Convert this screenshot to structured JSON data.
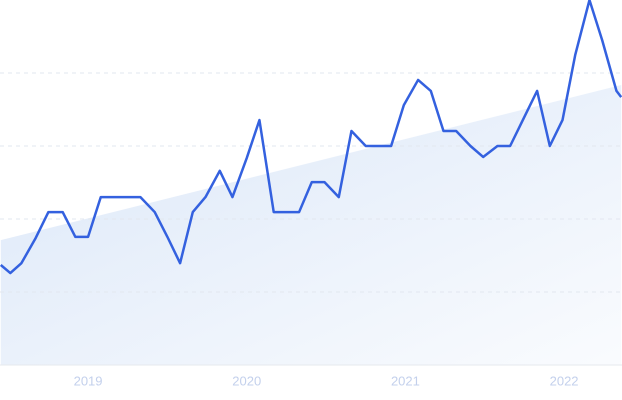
{
  "chart_data": {
    "type": "line",
    "x": [
      2018.45,
      2018.51,
      2018.58,
      2018.67,
      2018.75,
      2018.84,
      2018.92,
      2019.0,
      2019.08,
      2019.16,
      2019.25,
      2019.33,
      2019.42,
      2019.5,
      2019.58,
      2019.66,
      2019.74,
      2019.83,
      2019.91,
      2020.0,
      2020.08,
      2020.17,
      2020.25,
      2020.33,
      2020.41,
      2020.49,
      2020.58,
      2020.66,
      2020.75,
      2020.83,
      2020.91,
      2020.99,
      2021.08,
      2021.16,
      2021.24,
      2021.32,
      2021.41,
      2021.49,
      2021.58,
      2021.66,
      2021.74,
      2021.83,
      2021.91,
      2021.99,
      2022.07,
      2022.16,
      2022.24,
      2022.33,
      2022.36
    ],
    "series": [
      {
        "color": "#3461df",
        "values": [
          27.4,
          25.2,
          27.9,
          34.8,
          41.9,
          41.9,
          35.1,
          35.1,
          46,
          46,
          46,
          46,
          41.9,
          35.1,
          27.9,
          41.9,
          46,
          53.2,
          46,
          56.7,
          67.1,
          41.9,
          41.9,
          41.9,
          50.1,
          50.1,
          46,
          64.1,
          60,
          60,
          60,
          71.2,
          78.1,
          75.1,
          64.1,
          64.1,
          60,
          57,
          60,
          60,
          67.1,
          75.1,
          60,
          67.1,
          84.9,
          100,
          89,
          75.1,
          73.4
        ]
      }
    ],
    "trend": {
      "x": [
        2018.45,
        2022.36
      ],
      "values": [
        34.2,
        76.7
      ],
      "color": "#dbe7f8"
    },
    "xlim": [
      2018.445,
      2022.365
    ],
    "xticks": [
      2019,
      2020,
      2021,
      2022
    ],
    "ylim": [
      0,
      100
    ],
    "yticks": [
      20,
      40,
      60,
      80
    ],
    "grid": true
  }
}
